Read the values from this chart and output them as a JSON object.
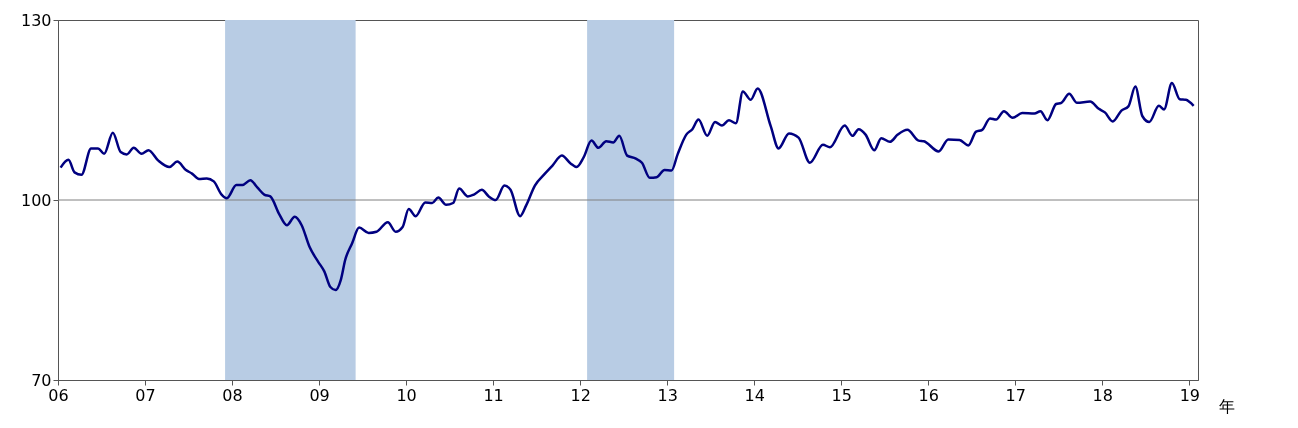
{
  "chart_data": {
    "type": "line",
    "xlabel": "年",
    "x": [
      2006.03,
      2006.12,
      2006.19,
      2006.27,
      2006.38,
      2006.46,
      2006.53,
      2006.63,
      2006.72,
      2006.79,
      2006.87,
      2006.96,
      2007.04,
      2007.15,
      2007.28,
      2007.37,
      2007.47,
      2007.54,
      2007.62,
      2007.71,
      2007.79,
      2007.88,
      2007.94,
      2008.05,
      2008.12,
      2008.21,
      2008.29,
      2008.37,
      2008.44,
      2008.54,
      2008.63,
      2008.72,
      2008.8,
      2008.89,
      2008.99,
      2009.06,
      2009.13,
      2009.19,
      2009.25,
      2009.3,
      2009.38,
      2009.46,
      2009.57,
      2009.66,
      2009.79,
      2009.88,
      2009.96,
      2010.03,
      2010.11,
      2010.22,
      2010.3,
      2010.37,
      2010.46,
      2010.54,
      2010.61,
      2010.71,
      2010.78,
      2010.87,
      2010.95,
      2011.03,
      2011.13,
      2011.2,
      2011.31,
      2011.38,
      2011.48,
      2011.59,
      2011.68,
      2011.79,
      2011.89,
      2011.96,
      2012.04,
      2012.13,
      2012.21,
      2012.3,
      2012.38,
      2012.45,
      2012.54,
      2012.64,
      2012.71,
      2012.8,
      2012.88,
      2012.97,
      2013.05,
      2013.12,
      2013.22,
      2013.29,
      2013.36,
      2013.46,
      2013.55,
      2013.63,
      2013.71,
      2013.79,
      2013.87,
      2013.96,
      2014.04,
      2014.19,
      2014.28,
      2014.4,
      2014.51,
      2014.64,
      2014.79,
      2014.87,
      2015.04,
      2015.13,
      2015.2,
      2015.28,
      2015.38,
      2015.46,
      2015.56,
      2015.65,
      2015.76,
      2015.89,
      2015.95,
      2016.12,
      2016.23,
      2016.36,
      2016.46,
      2016.55,
      2016.62,
      2016.71,
      2016.78,
      2016.87,
      2016.97,
      2017.08,
      2017.22,
      2017.29,
      2017.37,
      2017.47,
      2017.53,
      2017.62,
      2017.71,
      2017.86,
      2017.96,
      2018.03,
      2018.12,
      2018.22,
      2018.3,
      2018.38,
      2018.46,
      2018.54,
      2018.65,
      2018.71,
      2018.8,
      2018.89,
      2018.96,
      2019.05
    ],
    "series": [
      {
        "color": "#000080",
        "values": [
          105.4,
          106.7,
          104.6,
          104.2,
          108.6,
          108.6,
          107.7,
          111.2,
          108.0,
          107.6,
          108.7,
          107.7,
          108.3,
          106.6,
          105.5,
          106.4,
          105.0,
          104.4,
          103.5,
          103.6,
          103.1,
          100.9,
          100.3,
          102.5,
          102.5,
          103.3,
          102.1,
          100.9,
          100.6,
          97.7,
          95.8,
          97.2,
          95.8,
          92.2,
          89.7,
          88.1,
          85.5,
          85.0,
          86.7,
          90.0,
          92.8,
          95.4,
          94.5,
          94.7,
          96.3,
          94.7,
          95.5,
          98.5,
          97.3,
          99.6,
          99.5,
          100.4,
          99.2,
          99.5,
          101.9,
          100.6,
          100.9,
          101.7,
          100.6,
          100.0,
          102.4,
          101.7,
          97.3,
          99.1,
          102.4,
          104.3,
          105.7,
          107.4,
          106.1,
          105.5,
          107.1,
          109.9,
          108.7,
          109.8,
          109.6,
          110.7,
          107.4,
          106.9,
          106.2,
          103.7,
          103.8,
          105.0,
          104.9,
          107.6,
          110.9,
          111.8,
          113.4,
          110.7,
          113.0,
          112.4,
          113.3,
          112.8,
          118.1,
          116.7,
          118.6,
          112.3,
          108.6,
          111.1,
          110.4,
          106.2,
          109.2,
          108.8,
          112.4,
          110.7,
          111.8,
          110.9,
          108.3,
          110.3,
          109.7,
          110.9,
          111.7,
          109.9,
          109.8,
          108.1,
          110.1,
          110.0,
          109.1,
          111.4,
          111.7,
          113.6,
          113.4,
          114.8,
          113.7,
          114.5,
          114.4,
          114.8,
          113.3,
          116.0,
          116.2,
          117.7,
          116.2,
          116.4,
          115.2,
          114.6,
          113.1,
          114.9,
          115.6,
          118.9,
          114.0,
          113.0,
          115.7,
          115.1,
          119.5,
          116.8,
          116.7,
          115.7
        ]
      }
    ],
    "xlim": [
      2006,
      2019.1
    ],
    "xticks": [
      {
        "value": 2006,
        "label": "06"
      },
      {
        "value": 2007,
        "label": "07"
      },
      {
        "value": 2008,
        "label": "08"
      },
      {
        "value": 2009,
        "label": "09"
      },
      {
        "value": 2010,
        "label": "10"
      },
      {
        "value": 2011,
        "label": "11"
      },
      {
        "value": 2012,
        "label": "12"
      },
      {
        "value": 2013,
        "label": "13"
      },
      {
        "value": 2014,
        "label": "14"
      },
      {
        "value": 2015,
        "label": "15"
      },
      {
        "value": 2016,
        "label": "16"
      },
      {
        "value": 2017,
        "label": "17"
      },
      {
        "value": 2018,
        "label": "18"
      },
      {
        "value": 2019,
        "label": "19"
      }
    ],
    "ylim": [
      70,
      130
    ],
    "yticks": [
      70,
      100,
      130
    ],
    "ref_lines": [
      {
        "axis": "y",
        "value": 100,
        "color": "#808080"
      }
    ],
    "bands": [
      {
        "axis": "x",
        "from": 2007.92,
        "to": 2009.42,
        "color": "#b8cce4"
      },
      {
        "axis": "x",
        "from": 2012.08,
        "to": 2013.08,
        "color": "#b8cce4"
      }
    ],
    "grid": false,
    "line_style": "solid"
  }
}
